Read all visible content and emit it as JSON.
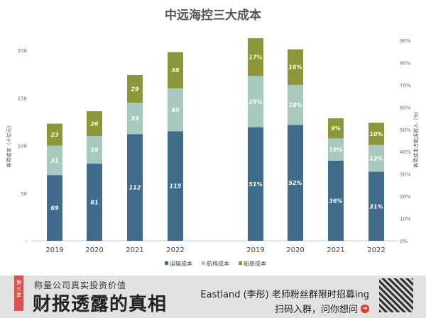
{
  "chart_data": [
    {
      "type": "bar",
      "stacked": true,
      "title": "中远海控三大成本",
      "ylabel": "各项成本（十亿元）",
      "ylim": [
        0,
        200
      ],
      "yticks": [
        "-",
        "50",
        "100",
        "150",
        "200"
      ],
      "categories": [
        "2019",
        "2020",
        "2021",
        "2022"
      ],
      "series": [
        {
          "name": "运输成本",
          "values": [
            69,
            81,
            112,
            115
          ]
        },
        {
          "name": "航程成本",
          "values": [
            31,
            29,
            33,
            45
          ]
        },
        {
          "name": "船舶成本",
          "values": [
            23,
            26,
            29,
            38
          ]
        }
      ]
    },
    {
      "type": "bar",
      "stacked": true,
      "ylabel": "各项成本占航运收入（%）",
      "ylim": [
        0,
        90
      ],
      "yticks": [
        "0%",
        "10%",
        "20%",
        "30%",
        "40%",
        "50%",
        "60%",
        "70%",
        "80%",
        "90%"
      ],
      "categories": [
        "2019",
        "2020",
        "2021",
        "2022"
      ],
      "series": [
        {
          "name": "运输成本",
          "values": [
            51,
            52,
            36,
            31
          ]
        },
        {
          "name": "航程成本",
          "values": [
            23,
            18,
            10,
            12
          ]
        },
        {
          "name": "船舶成本",
          "values": [
            17,
            16,
            9,
            10
          ]
        }
      ]
    }
  ],
  "colors": [
    "#416b8b",
    "#a7c9bf",
    "#8d9638"
  ],
  "legend": [
    "运输成本",
    "航程成本",
    "船舶成本"
  ],
  "banner": {
    "season": "第三季",
    "subtitle": "称量公司真实投资价值",
    "title": "财报透露的真相",
    "promo": "Eastland (李彤) 老师粉丝群限时招募ing",
    "scan": "扫码入群，问你想问"
  }
}
